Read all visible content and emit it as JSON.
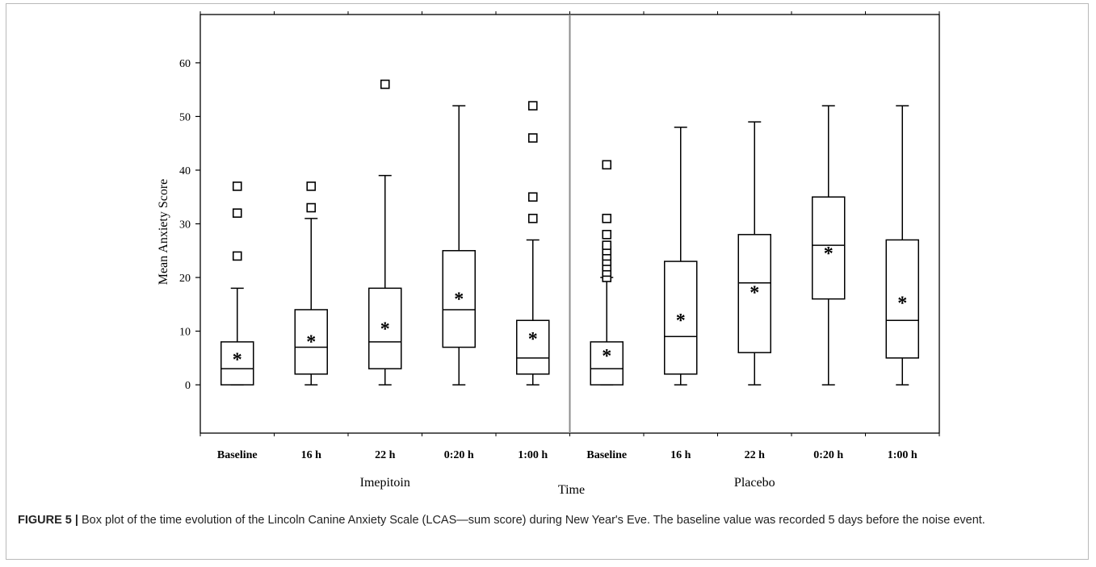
{
  "chart_data": {
    "type": "box",
    "ylabel": "Mean Anxiety Score",
    "xlabel": "Time",
    "ylim": [
      -9,
      69
    ],
    "yticks": [
      0,
      10,
      20,
      30,
      40,
      50,
      60
    ],
    "groups": [
      {
        "name": "Imepitoin",
        "boxes": [
          {
            "label": "Baseline",
            "min": 0,
            "q1": 0,
            "median": 3,
            "q3": 8,
            "max": 18,
            "mean": 5.5,
            "outliers": [
              24,
              32,
              37
            ]
          },
          {
            "label": "16 h",
            "min": 0,
            "q1": 2,
            "median": 7,
            "q3": 14,
            "max": 31,
            "mean": 8.8,
            "outliers": [
              33,
              37
            ]
          },
          {
            "label": "22 h",
            "min": 0,
            "q1": 3,
            "median": 8,
            "q3": 18,
            "max": 39,
            "mean": 11.2,
            "outliers": [
              56
            ]
          },
          {
            "label": "0:20 h",
            "min": 0,
            "q1": 7,
            "median": 14,
            "q3": 25,
            "max": 52,
            "mean": 16.8,
            "outliers": []
          },
          {
            "label": "1:00 h",
            "min": 0,
            "q1": 2,
            "median": 5,
            "q3": 12,
            "max": 27,
            "mean": 9.3,
            "outliers": [
              31,
              35,
              46,
              52
            ]
          }
        ]
      },
      {
        "name": "Placebo",
        "boxes": [
          {
            "label": "Baseline",
            "min": 0,
            "q1": 0,
            "median": 3,
            "q3": 8,
            "max": 20,
            "mean": 6.2,
            "outliers": [
              20,
              21,
              22,
              23,
              24,
              25,
              26,
              28,
              31,
              41
            ]
          },
          {
            "label": "16 h",
            "min": 0,
            "q1": 2,
            "median": 9,
            "q3": 23,
            "max": 48,
            "mean": 12.8,
            "outliers": []
          },
          {
            "label": "22 h",
            "min": 0,
            "q1": 6,
            "median": 19,
            "q3": 28,
            "max": 49,
            "mean": 18,
            "outliers": []
          },
          {
            "label": "0:20 h",
            "min": 0,
            "q1": 16,
            "median": 26,
            "q3": 35,
            "max": 52,
            "mean": 25.3,
            "outliers": []
          },
          {
            "label": "1:00 h",
            "min": 0,
            "q1": 5,
            "median": 12,
            "q3": 27,
            "max": 52,
            "mean": 16,
            "outliers": []
          }
        ]
      }
    ],
    "mean_marker": "*",
    "outlier_marker": "square",
    "colors": {
      "line": "#000000",
      "divider": "#8c8c8c"
    }
  },
  "caption": {
    "label": "FIGURE 5 |",
    "text": "Box plot of the time evolution of the Lincoln Canine Anxiety Scale (LCAS—sum score) during New Year's Eve. The baseline value was recorded 5 days before the noise event."
  }
}
